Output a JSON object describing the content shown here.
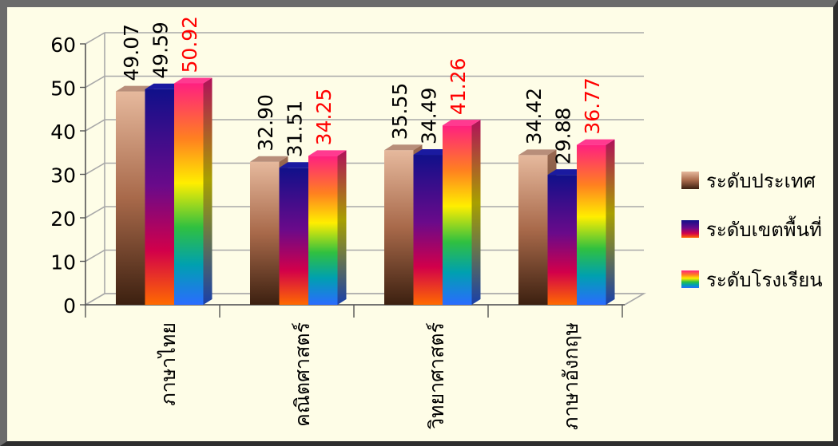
{
  "chart_data": {
    "type": "bar",
    "categories": [
      "ภาษาไทย",
      "คณิตศาสตร์",
      "วิทยาศาสตร์",
      "ภาษาอังกฤษ"
    ],
    "series": [
      {
        "name": "ระดับประเทศ",
        "values": [
          49.07,
          32.9,
          35.55,
          34.42
        ],
        "labels": [
          "49.07",
          "32.90",
          "35.55",
          "34.42"
        ],
        "label_color": "#000000"
      },
      {
        "name": "ระดับเขตพื้นที่",
        "values": [
          49.59,
          31.51,
          34.49,
          29.88
        ],
        "labels": [
          "49.59",
          "31.51",
          "34.49",
          "29.88"
        ],
        "label_color": "#000000"
      },
      {
        "name": "ระดับโรงเรียน",
        "values": [
          50.92,
          34.25,
          41.26,
          36.77
        ],
        "labels": [
          "50.92",
          "34.25",
          "41.26",
          "36.77"
        ],
        "label_color": "#ff0000"
      }
    ],
    "yticks": [
      "0",
      "10",
      "20",
      "30",
      "40",
      "50",
      "60"
    ],
    "ylim": [
      0,
      60
    ],
    "grid": true,
    "legend_position": "right",
    "style": "3d"
  }
}
